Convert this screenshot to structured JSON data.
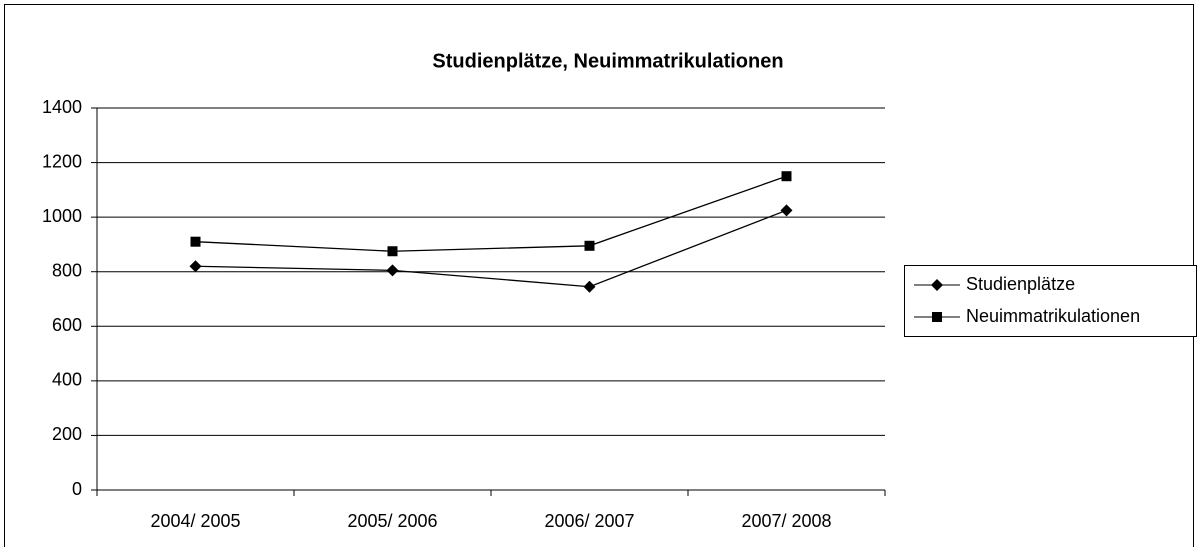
{
  "chart_data": {
    "type": "line",
    "title": "Studienplätze, Neuimmatrikulationen",
    "categories": [
      "2004/ 2005",
      "2005/ 2006",
      "2006/ 2007",
      "2007/ 2008"
    ],
    "series": [
      {
        "name": "Studienplätze",
        "color": "#000000",
        "marker": "diamond",
        "values": [
          820,
          805,
          745,
          1025
        ]
      },
      {
        "name": "Neuimmatrikulationen",
        "color": "#000000",
        "marker": "square",
        "values": [
          910,
          875,
          895,
          1150
        ]
      }
    ],
    "ylim": [
      0,
      1400
    ],
    "yticks": [
      0,
      200,
      400,
      600,
      800,
      1000,
      1200,
      1400
    ],
    "grid": true,
    "legend": "right"
  }
}
